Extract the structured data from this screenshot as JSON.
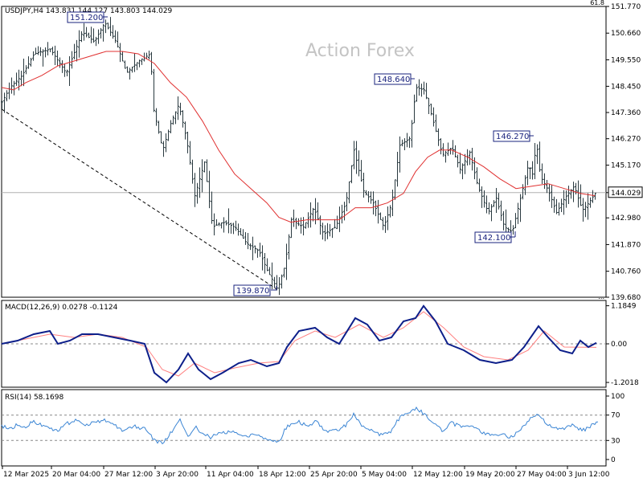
{
  "chart_data": [
    {
      "type": "candlestick",
      "symbol": "USDJPY",
      "timeframe": "H4",
      "header": "USDJPY,H4  143.831 144.127 143.803 144.029",
      "watermark": "Action Forex",
      "ohlc": {
        "open": 143.831,
        "high": 144.127,
        "low": 143.803,
        "close": 144.029
      },
      "current_price": 144.029,
      "current_price_label": "144.029",
      "ylim": [
        139.68,
        151.77
      ],
      "y_ticks": [
        "151.770",
        "150.660",
        "149.550",
        "148.450",
        "147.360",
        "146.270",
        "145.170",
        "144.029",
        "142.980",
        "141.870",
        "140.760",
        "139.680"
      ],
      "top_right_label": "61.8",
      "bottom_right_label": "...",
      "x_ticks": [
        "12 Mar 2025",
        "20 Mar 04:00",
        "27 Mar 12:00",
        "3 Apr 20:00",
        "11 Apr 04:00",
        "18 Apr 12:00",
        "25 Apr 20:00",
        "5 May 04:00",
        "12 May 12:00",
        "19 May 20:00",
        "27 May 04:00",
        "3 Jun 12:00"
      ],
      "annotations": [
        {
          "text": "151.200",
          "value": 151.2,
          "at_date": "24 Mar"
        },
        {
          "text": "139.870",
          "value": 139.87,
          "at_date": "22 Apr"
        },
        {
          "text": "148.640",
          "value": 148.64,
          "at_date": "12 May"
        },
        {
          "text": "146.270",
          "value": 146.27,
          "at_date": "29 May"
        },
        {
          "text": "142.100",
          "value": 142.1,
          "at_date": "27 May"
        }
      ],
      "price_path": [
        [
          0,
          147.8
        ],
        [
          10,
          148.4
        ],
        [
          25,
          148.9
        ],
        [
          40,
          149.8
        ],
        [
          60,
          150.0
        ],
        [
          80,
          149.0
        ],
        [
          100,
          150.7
        ],
        [
          115,
          150.3
        ],
        [
          128,
          151.1
        ],
        [
          142,
          150.3
        ],
        [
          155,
          149.0
        ],
        [
          170,
          149.5
        ],
        [
          185,
          149.8
        ],
        [
          188,
          147.6
        ],
        [
          200,
          145.8
        ],
        [
          210,
          146.9
        ],
        [
          220,
          147.7
        ],
        [
          230,
          146.2
        ],
        [
          240,
          143.9
        ],
        [
          252,
          145.3
        ],
        [
          262,
          142.6
        ],
        [
          275,
          142.8
        ],
        [
          290,
          142.6
        ],
        [
          305,
          141.9
        ],
        [
          320,
          141.6
        ],
        [
          330,
          140.8
        ],
        [
          343,
          140.0
        ],
        [
          352,
          141.0
        ],
        [
          360,
          142.9
        ],
        [
          375,
          142.6
        ],
        [
          388,
          143.4
        ],
        [
          400,
          142.3
        ],
        [
          415,
          142.6
        ],
        [
          428,
          143.6
        ],
        [
          438,
          145.8
        ],
        [
          450,
          144.1
        ],
        [
          462,
          143.6
        ],
        [
          475,
          142.6
        ],
        [
          485,
          143.6
        ],
        [
          495,
          146.0
        ],
        [
          508,
          146.3
        ],
        [
          515,
          148.4
        ],
        [
          525,
          148.3
        ],
        [
          535,
          147.2
        ],
        [
          548,
          145.6
        ],
        [
          560,
          145.9
        ],
        [
          570,
          145.0
        ],
        [
          582,
          145.7
        ],
        [
          592,
          144.3
        ],
        [
          605,
          143.2
        ],
        [
          615,
          143.8
        ],
        [
          625,
          142.6
        ],
        [
          635,
          142.4
        ],
        [
          648,
          144.2
        ],
        [
          655,
          145.2
        ],
        [
          660,
          144.8
        ],
        [
          665,
          146.1
        ],
        [
          670,
          144.7
        ],
        [
          680,
          144.1
        ],
        [
          690,
          143.2
        ],
        [
          700,
          143.8
        ],
        [
          712,
          144.3
        ],
        [
          722,
          143.3
        ],
        [
          730,
          143.6
        ],
        [
          738,
          144.0
        ]
      ],
      "series": [
        {
          "name": "",
          "color": "#e03030",
          "values": [
            [
              0,
              148.4
            ],
            [
              15,
              148.3
            ],
            [
              30,
              148.6
            ],
            [
              50,
              148.9
            ],
            [
              70,
              149.3
            ],
            [
              90,
              149.5
            ],
            [
              110,
              149.7
            ],
            [
              130,
              149.9
            ],
            [
              150,
              149.9
            ],
            [
              170,
              149.8
            ],
            [
              190,
              149.4
            ],
            [
              210,
              148.6
            ],
            [
              230,
              148.0
            ],
            [
              250,
              147.0
            ],
            [
              270,
              145.8
            ],
            [
              290,
              144.8
            ],
            [
              310,
              144.2
            ],
            [
              330,
              143.6
            ],
            [
              345,
              143.0
            ],
            [
              360,
              142.8
            ],
            [
              380,
              142.9
            ],
            [
              400,
              142.9
            ],
            [
              420,
              142.9
            ],
            [
              440,
              143.4
            ],
            [
              460,
              143.4
            ],
            [
              480,
              143.6
            ],
            [
              500,
              144.0
            ],
            [
              515,
              144.9
            ],
            [
              530,
              145.5
            ],
            [
              545,
              145.8
            ],
            [
              560,
              145.8
            ],
            [
              580,
              145.5
            ],
            [
              600,
              145.1
            ],
            [
              620,
              144.6
            ],
            [
              640,
              144.2
            ],
            [
              660,
              144.3
            ],
            [
              680,
              144.4
            ],
            [
              700,
              144.2
            ],
            [
              720,
              144.0
            ],
            [
              738,
              143.9
            ]
          ]
        }
      ],
      "trendline": {
        "from": [
          0,
          147.5
        ],
        "to": [
          343,
          140.0
        ],
        "style": "dashed"
      }
    },
    {
      "type": "line",
      "title": "MACD(12,26,9) 0.0278 -0.1124",
      "ylim": [
        -1.35,
        1.35
      ],
      "y_ticks": [
        "1.1849",
        "0.00",
        "-1.2018"
      ],
      "series": [
        {
          "name": "",
          "color": "#0d1f8a",
          "values": [
            [
              0,
              0.0
            ],
            [
              20,
              0.1
            ],
            [
              40,
              0.3
            ],
            [
              60,
              0.4
            ],
            [
              70,
              0.0
            ],
            [
              85,
              0.1
            ],
            [
              100,
              0.3
            ],
            [
              120,
              0.3
            ],
            [
              140,
              0.2
            ],
            [
              160,
              0.1
            ],
            [
              178,
              0.0
            ],
            [
              190,
              -0.9
            ],
            [
              205,
              -1.2
            ],
            [
              220,
              -0.8
            ],
            [
              232,
              -0.3
            ],
            [
              245,
              -0.8
            ],
            [
              260,
              -1.1
            ],
            [
              275,
              -0.9
            ],
            [
              295,
              -0.6
            ],
            [
              310,
              -0.5
            ],
            [
              330,
              -0.7
            ],
            [
              345,
              -0.6
            ],
            [
              355,
              -0.1
            ],
            [
              370,
              0.4
            ],
            [
              390,
              0.5
            ],
            [
              405,
              0.2
            ],
            [
              420,
              0.0
            ],
            [
              440,
              0.8
            ],
            [
              455,
              0.6
            ],
            [
              470,
              0.1
            ],
            [
              485,
              0.2
            ],
            [
              500,
              0.7
            ],
            [
              515,
              0.8
            ],
            [
              525,
              1.18
            ],
            [
              540,
              0.7
            ],
            [
              555,
              0.0
            ],
            [
              575,
              -0.2
            ],
            [
              595,
              -0.5
            ],
            [
              615,
              -0.6
            ],
            [
              635,
              -0.5
            ],
            [
              650,
              -0.1
            ],
            [
              668,
              0.55
            ],
            [
              680,
              0.2
            ],
            [
              695,
              -0.2
            ],
            [
              710,
              -0.3
            ],
            [
              720,
              0.1
            ],
            [
              730,
              -0.1
            ],
            [
              740,
              0.03
            ]
          ]
        },
        {
          "name": "",
          "color": "#ff8080",
          "values": [
            [
              0,
              0.0
            ],
            [
              30,
              0.15
            ],
            [
              60,
              0.3
            ],
            [
              90,
              0.2
            ],
            [
              120,
              0.3
            ],
            [
              150,
              0.2
            ],
            [
              180,
              -0.1
            ],
            [
              200,
              -0.8
            ],
            [
              220,
              -1.0
            ],
            [
              240,
              -0.6
            ],
            [
              265,
              -0.9
            ],
            [
              290,
              -0.75
            ],
            [
              320,
              -0.6
            ],
            [
              345,
              -0.55
            ],
            [
              365,
              0.1
            ],
            [
              390,
              0.4
            ],
            [
              415,
              0.2
            ],
            [
              445,
              0.6
            ],
            [
              475,
              0.2
            ],
            [
              500,
              0.5
            ],
            [
              525,
              1.0
            ],
            [
              550,
              0.5
            ],
            [
              575,
              -0.1
            ],
            [
              600,
              -0.4
            ],
            [
              630,
              -0.5
            ],
            [
              655,
              -0.2
            ],
            [
              675,
              0.4
            ],
            [
              700,
              -0.1
            ],
            [
              740,
              -0.11
            ]
          ]
        }
      ]
    },
    {
      "type": "line",
      "title": "RSI(14) 58.1698",
      "ylim": [
        0,
        100
      ],
      "y_ticks": [
        "100",
        "70",
        "30",
        "0"
      ],
      "levels": [
        70,
        30
      ],
      "series": [
        {
          "name": "",
          "color": "#3b85d4",
          "values": [
            [
              0,
              52
            ],
            [
              12,
              48
            ],
            [
              20,
              56
            ],
            [
              30,
              52
            ],
            [
              40,
              60
            ],
            [
              50,
              55
            ],
            [
              60,
              49
            ],
            [
              70,
              46
            ],
            [
              80,
              56
            ],
            [
              95,
              63
            ],
            [
              105,
              53
            ],
            [
              115,
              58
            ],
            [
              128,
              62
            ],
            [
              140,
              55
            ],
            [
              150,
              44
            ],
            [
              165,
              52
            ],
            [
              180,
              47
            ],
            [
              190,
              30
            ],
            [
              200,
              25
            ],
            [
              212,
              45
            ],
            [
              222,
              62
            ],
            [
              232,
              36
            ],
            [
              242,
              52
            ],
            [
              250,
              40
            ],
            [
              260,
              35
            ],
            [
              275,
              43
            ],
            [
              290,
              42
            ],
            [
              305,
              37
            ],
            [
              320,
              40
            ],
            [
              333,
              30
            ],
            [
              345,
              28
            ],
            [
              355,
              53
            ],
            [
              368,
              60
            ],
            [
              380,
              54
            ],
            [
              392,
              60
            ],
            [
              405,
              42
            ],
            [
              418,
              46
            ],
            [
              430,
              56
            ],
            [
              438,
              71
            ],
            [
              450,
              50
            ],
            [
              462,
              44
            ],
            [
              472,
              39
            ],
            [
              485,
              44
            ],
            [
              495,
              66
            ],
            [
              505,
              74
            ],
            [
              515,
              80
            ],
            [
              522,
              75
            ],
            [
              535,
              62
            ],
            [
              548,
              46
            ],
            [
              560,
              58
            ],
            [
              572,
              50
            ],
            [
              585,
              55
            ],
            [
              595,
              45
            ],
            [
              608,
              39
            ],
            [
              620,
              40
            ],
            [
              632,
              36
            ],
            [
              642,
              42
            ],
            [
              652,
              55
            ],
            [
              660,
              66
            ],
            [
              668,
              73
            ],
            [
              678,
              55
            ],
            [
              690,
              50
            ],
            [
              700,
              48
            ],
            [
              712,
              56
            ],
            [
              722,
              45
            ],
            [
              732,
              52
            ],
            [
              742,
              58
            ]
          ]
        }
      ]
    }
  ]
}
